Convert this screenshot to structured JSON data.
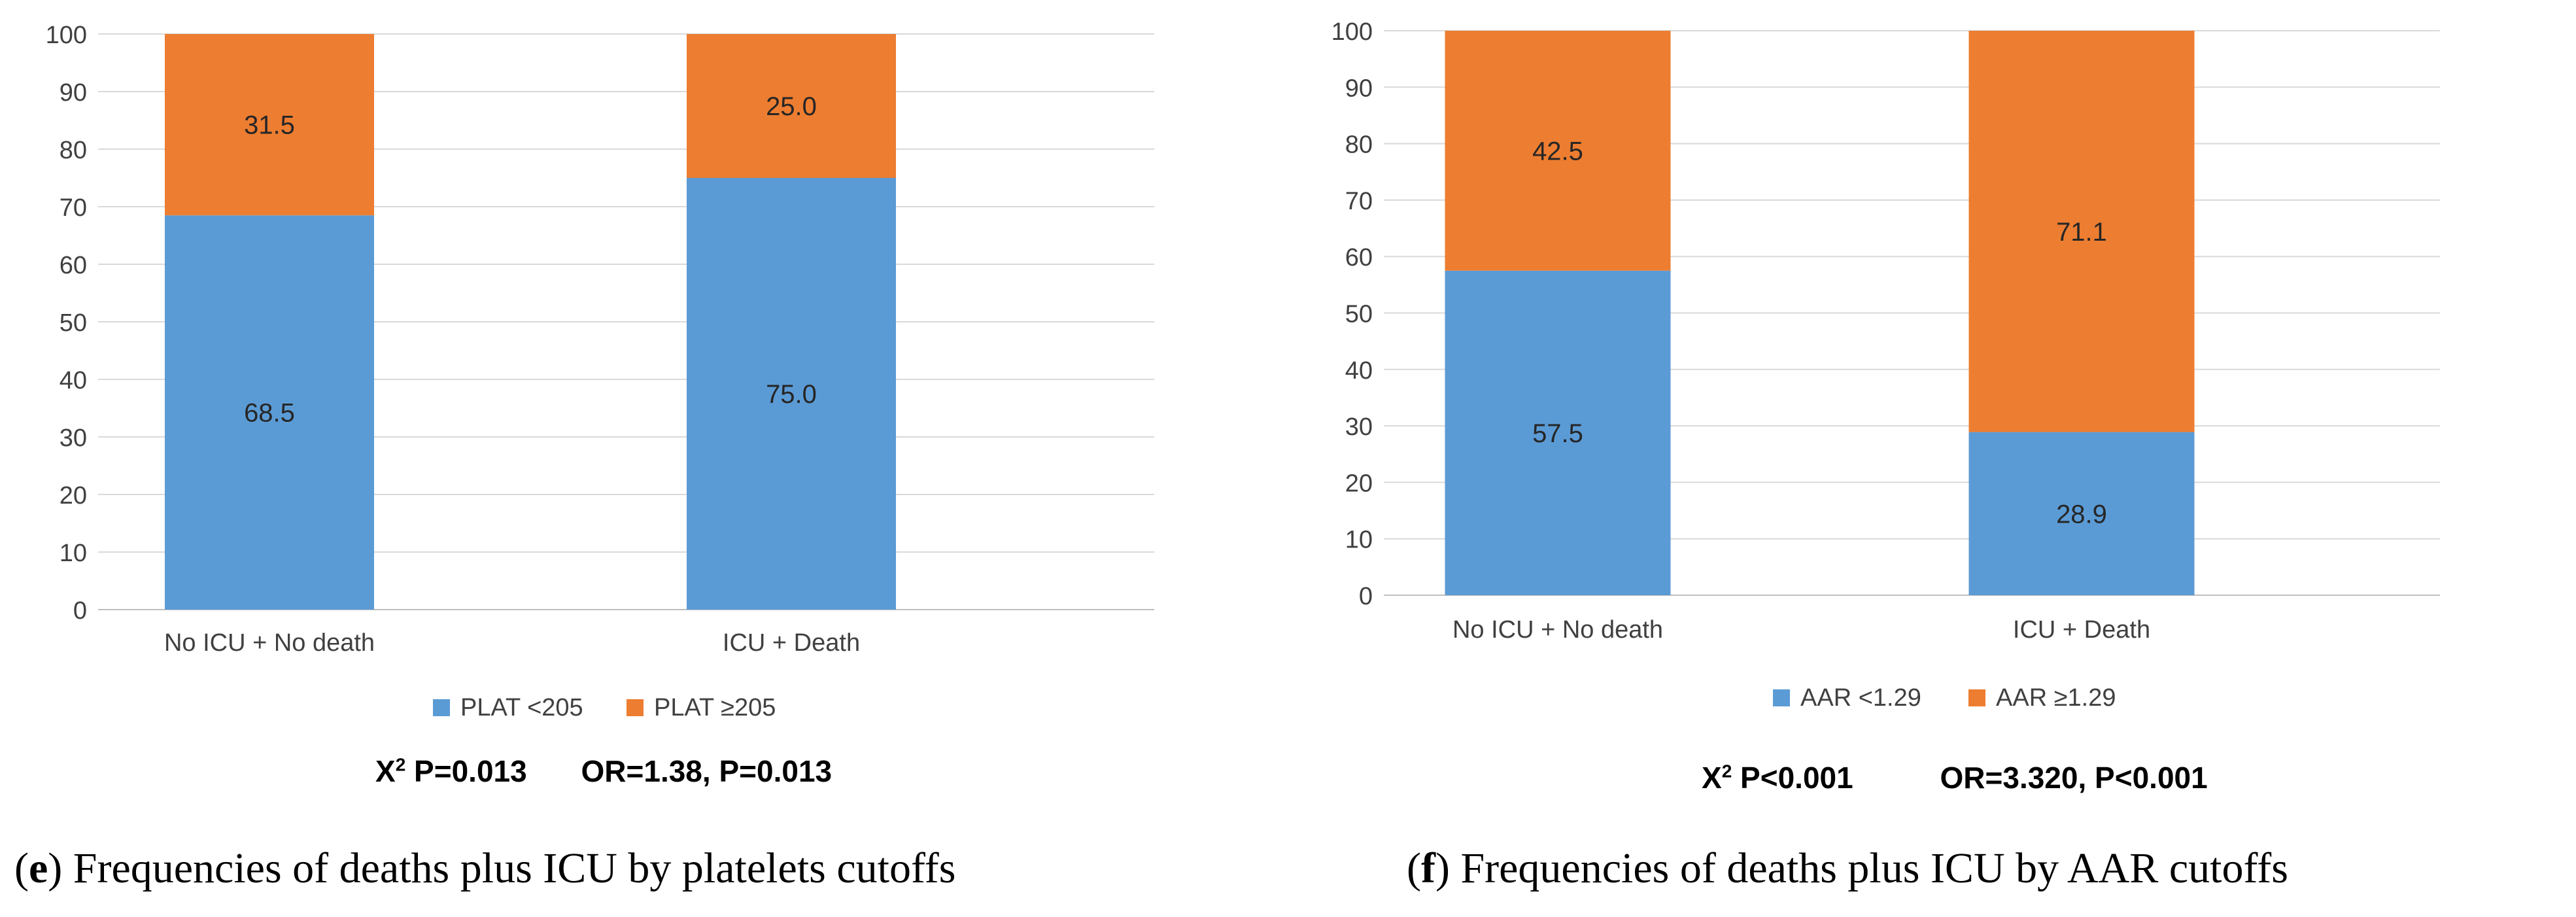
{
  "panels": [
    {
      "letter": "e",
      "caption": "Frequencies of deaths plus ICU by platelets cutoffs",
      "stats": {
        "chi_label": "X",
        "chi_sup": "2",
        "chi_p": "P=0.013",
        "or_text": "OR=1.38, P=0.013"
      },
      "chart_data": {
        "type": "bar",
        "stacked": true,
        "categories": [
          "No ICU + No death",
          "ICU + Death"
        ],
        "series": [
          {
            "name": "PLAT <205",
            "values": [
              68.5,
              75.0
            ],
            "labels": [
              "68.5",
              "75.0"
            ],
            "color": "#5B9BD5"
          },
          {
            "name": "PLAT ≥205",
            "values": [
              31.5,
              25.0
            ],
            "labels": [
              "31.5",
              "25.0"
            ],
            "color": "#ED7D31"
          }
        ],
        "ylim": [
          0,
          100
        ],
        "yticks": [
          0,
          10,
          20,
          30,
          40,
          50,
          60,
          70,
          80,
          90,
          100
        ],
        "grid": true,
        "legend": "bottom"
      }
    },
    {
      "letter": "f",
      "caption": "Frequencies of deaths plus ICU by AAR cutoffs",
      "stats": {
        "chi_label": "X",
        "chi_sup": "2",
        "chi_p": "P<0.001",
        "or_text": "OR=3.320, P<0.001"
      },
      "chart_data": {
        "type": "bar",
        "stacked": true,
        "categories": [
          "No ICU + No death",
          "ICU + Death"
        ],
        "series": [
          {
            "name": "AAR <1.29",
            "values": [
              57.5,
              28.9
            ],
            "labels": [
              "57.5",
              "28.9"
            ],
            "color": "#5B9BD5"
          },
          {
            "name": "AAR ≥1.29",
            "values": [
              42.5,
              71.1
            ],
            "labels": [
              "42.5",
              "71.1"
            ],
            "color": "#ED7D31"
          }
        ],
        "ylim": [
          0,
          100
        ],
        "yticks": [
          0,
          10,
          20,
          30,
          40,
          50,
          60,
          70,
          80,
          90,
          100
        ],
        "grid": true,
        "legend": "bottom"
      }
    }
  ]
}
